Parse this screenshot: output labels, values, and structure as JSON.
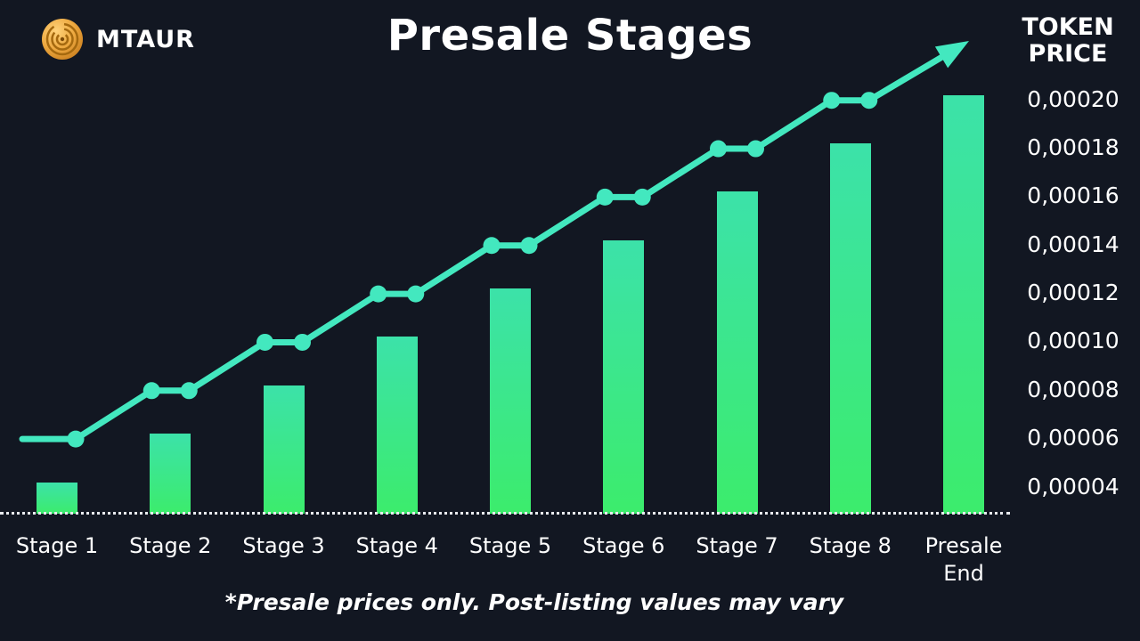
{
  "header": {
    "brand": "MTAUR",
    "title": "Presale Stages",
    "axis_title": [
      "TOKEN",
      "PRICE"
    ]
  },
  "footnote": "*Presale prices only. Post-listing values may vary",
  "colors": {
    "background": "#121722",
    "text": "#FFFFFF",
    "bar_gradient_top": "#3CE2A9",
    "bar_gradient_bottom": "#3CEC6C",
    "trend_line": "#43E8BF",
    "baseline_dots": "#E8EAEE",
    "logo_gold": "#EDA83F"
  },
  "chart_data": {
    "type": "bar",
    "title": "Presale Stages",
    "categories": [
      "Stage 1",
      "Stage 2",
      "Stage 3",
      "Stage 4",
      "Stage 5",
      "Stage 6",
      "Stage 7",
      "Stage 8",
      "Presale End"
    ],
    "values": [
      4e-05,
      6e-05,
      8e-05,
      0.0001,
      0.00012,
      0.00014,
      0.00016,
      0.00018,
      0.0002
    ],
    "tick_labels": [
      "0,00004",
      "0,00006",
      "0,00008",
      "0,00010",
      "0,00012",
      "0,00014",
      "0,00016",
      "0,00018",
      "0,00020"
    ],
    "ylabel": "TOKEN PRICE",
    "ylim": [
      4e-05,
      0.0002
    ],
    "grid": false,
    "legend": false,
    "trend_line": "rising step line with dots at each stage, ending in an upward arrow"
  }
}
